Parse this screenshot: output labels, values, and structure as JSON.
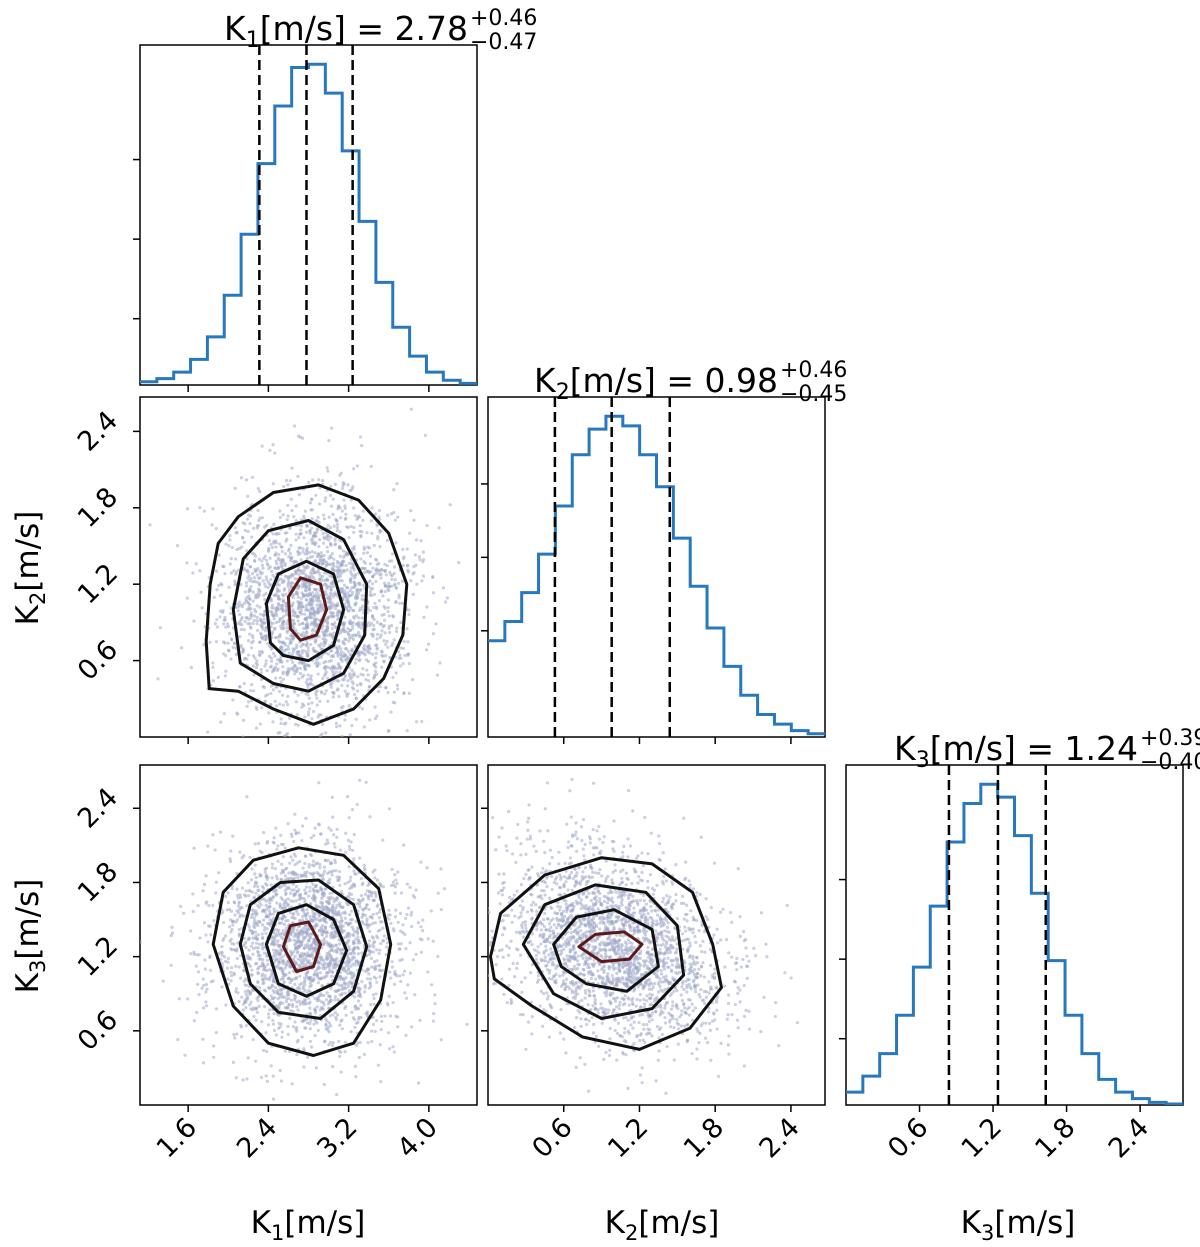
{
  "chart_data": {
    "type": "corner",
    "colors": {
      "hist": "#2878c0",
      "scatter": "#9fa7c8",
      "contour": "#111111",
      "contour_inner": "#5a1a1a"
    },
    "params": [
      {
        "name": "K1",
        "label_main": "K",
        "label_sub": "1",
        "label_unit": "[m/s]",
        "median": "2.78",
        "err_plus": "+0.46",
        "err_minus": "−0.47",
        "quantiles": [
          2.31,
          2.78,
          3.24
        ],
        "range": [
          1.12,
          4.48
        ],
        "ticks": [
          1.6,
          2.4,
          3.2,
          4.0
        ],
        "tick_labels": [
          "1.6",
          "2.4",
          "3.2",
          "4.0"
        ]
      },
      {
        "name": "K2",
        "label_main": "K",
        "label_sub": "2",
        "label_unit": "[m/s]",
        "median": "0.98",
        "err_plus": "+0.46",
        "err_minus": "−0.45",
        "quantiles": [
          0.53,
          0.98,
          1.44
        ],
        "range": [
          0.0,
          2.67
        ],
        "ticks": [
          0.6,
          1.2,
          1.8,
          2.4
        ],
        "tick_labels": [
          "0.6",
          "1.2",
          "1.8",
          "2.4"
        ]
      },
      {
        "name": "K3",
        "label_main": "K",
        "label_sub": "3",
        "label_unit": "[m/s]",
        "median": "1.24",
        "err_plus": "+0.39",
        "err_minus": "−0.40",
        "quantiles": [
          0.84,
          1.24,
          1.63
        ],
        "range": [
          0.0,
          2.75
        ],
        "ticks": [
          0.6,
          1.2,
          1.8,
          2.4
        ],
        "tick_labels": [
          "0.6",
          "1.2",
          "1.8",
          "2.4"
        ]
      }
    ],
    "histograms": [
      {
        "param": "K1",
        "bin_start": 1.12,
        "bin_width": 0.168,
        "counts": [
          0.01,
          0.02,
          0.04,
          0.08,
          0.15,
          0.28,
          0.47,
          0.69,
          0.87,
          0.99,
          1.0,
          0.91,
          0.73,
          0.51,
          0.32,
          0.18,
          0.09,
          0.04,
          0.015,
          0.005
        ]
      },
      {
        "param": "K2",
        "bin_start": 0.0,
        "bin_width": 0.1335,
        "counts": [
          0.3,
          0.36,
          0.45,
          0.57,
          0.72,
          0.88,
          0.96,
          1.0,
          0.97,
          0.88,
          0.78,
          0.62,
          0.47,
          0.34,
          0.22,
          0.13,
          0.07,
          0.04,
          0.02,
          0.01
        ]
      },
      {
        "param": "K3",
        "bin_start": 0.0,
        "bin_width": 0.1375,
        "counts": [
          0.04,
          0.09,
          0.16,
          0.28,
          0.43,
          0.62,
          0.82,
          0.94,
          1.0,
          0.96,
          0.84,
          0.66,
          0.45,
          0.28,
          0.16,
          0.08,
          0.04,
          0.02,
          0.008,
          0.003
        ]
      }
    ],
    "pairs": [
      {
        "x": "K1",
        "y": "K2",
        "center": [
          2.85,
          1.02
        ],
        "sigma": [
          0.47,
          0.45
        ],
        "rho": 0.0,
        "n_points": 2400,
        "seed": 11,
        "contours": [
          [
            [
              1.81,
              0.38
            ],
            [
              1.78,
              0.75
            ],
            [
              1.82,
              1.2
            ],
            [
              1.9,
              1.52
            ],
            [
              2.1,
              1.73
            ],
            [
              2.45,
              1.92
            ],
            [
              2.9,
              1.98
            ],
            [
              3.3,
              1.86
            ],
            [
              3.6,
              1.6
            ],
            [
              3.78,
              1.2
            ],
            [
              3.74,
              0.8
            ],
            [
              3.55,
              0.46
            ],
            [
              3.25,
              0.22
            ],
            [
              2.85,
              0.1
            ],
            [
              2.45,
              0.22
            ],
            [
              2.1,
              0.36
            ]
          ],
          [
            [
              2.12,
              0.58
            ],
            [
              2.05,
              1.0
            ],
            [
              2.15,
              1.4
            ],
            [
              2.4,
              1.62
            ],
            [
              2.8,
              1.7
            ],
            [
              3.15,
              1.55
            ],
            [
              3.38,
              1.2
            ],
            [
              3.36,
              0.8
            ],
            [
              3.15,
              0.5
            ],
            [
              2.8,
              0.36
            ],
            [
              2.45,
              0.42
            ]
          ],
          [
            [
              2.42,
              0.74
            ],
            [
              2.38,
              1.05
            ],
            [
              2.5,
              1.28
            ],
            [
              2.78,
              1.38
            ],
            [
              3.05,
              1.28
            ],
            [
              3.15,
              1.0
            ],
            [
              3.05,
              0.72
            ],
            [
              2.8,
              0.6
            ],
            [
              2.55,
              0.64
            ]
          ],
          [
            [
              2.62,
              0.85
            ],
            [
              2.6,
              1.1
            ],
            [
              2.72,
              1.25
            ],
            [
              2.92,
              1.2
            ],
            [
              2.98,
              1.0
            ],
            [
              2.88,
              0.8
            ],
            [
              2.72,
              0.76
            ]
          ]
        ]
      },
      {
        "x": "K1",
        "y": "K3",
        "center": [
          2.78,
          1.3
        ],
        "sigma": [
          0.47,
          0.4
        ],
        "rho": 0.0,
        "n_points": 2400,
        "seed": 23,
        "contours": [
          [
            [
              1.85,
              1.3
            ],
            [
              1.95,
              1.72
            ],
            [
              2.25,
              1.98
            ],
            [
              2.7,
              2.08
            ],
            [
              3.15,
              2.02
            ],
            [
              3.5,
              1.75
            ],
            [
              3.62,
              1.3
            ],
            [
              3.52,
              0.85
            ],
            [
              3.25,
              0.5
            ],
            [
              2.85,
              0.4
            ],
            [
              2.4,
              0.5
            ],
            [
              2.05,
              0.8
            ]
          ],
          [
            [
              2.12,
              1.3
            ],
            [
              2.22,
              1.62
            ],
            [
              2.52,
              1.8
            ],
            [
              2.9,
              1.82
            ],
            [
              3.25,
              1.62
            ],
            [
              3.38,
              1.28
            ],
            [
              3.25,
              0.92
            ],
            [
              2.92,
              0.7
            ],
            [
              2.5,
              0.75
            ],
            [
              2.22,
              0.98
            ]
          ],
          [
            [
              2.38,
              1.3
            ],
            [
              2.5,
              1.55
            ],
            [
              2.78,
              1.62
            ],
            [
              3.05,
              1.5
            ],
            [
              3.18,
              1.25
            ],
            [
              3.05,
              0.98
            ],
            [
              2.78,
              0.88
            ],
            [
              2.5,
              0.98
            ]
          ],
          [
            [
              2.55,
              1.28
            ],
            [
              2.62,
              1.45
            ],
            [
              2.8,
              1.48
            ],
            [
              2.92,
              1.3
            ],
            [
              2.85,
              1.12
            ],
            [
              2.68,
              1.08
            ]
          ]
        ]
      },
      {
        "x": "K2",
        "y": "K3",
        "center": [
          1.0,
          1.28
        ],
        "sigma": [
          0.45,
          0.4
        ],
        "rho": -0.3,
        "n_points": 2400,
        "seed": 37,
        "contours": [
          [
            [
              0.02,
              1.2
            ],
            [
              0.1,
              1.55
            ],
            [
              0.45,
              1.86
            ],
            [
              0.9,
              2.0
            ],
            [
              1.3,
              1.95
            ],
            [
              1.62,
              1.72
            ],
            [
              1.78,
              1.3
            ],
            [
              1.85,
              0.95
            ],
            [
              1.6,
              0.62
            ],
            [
              1.2,
              0.45
            ],
            [
              0.75,
              0.55
            ],
            [
              0.35,
              0.8
            ],
            [
              0.05,
              1.02
            ]
          ],
          [
            [
              0.28,
              1.3
            ],
            [
              0.45,
              1.62
            ],
            [
              0.85,
              1.78
            ],
            [
              1.25,
              1.72
            ],
            [
              1.5,
              1.45
            ],
            [
              1.55,
              1.05
            ],
            [
              1.3,
              0.78
            ],
            [
              0.9,
              0.7
            ],
            [
              0.52,
              0.9
            ]
          ],
          [
            [
              0.52,
              1.3
            ],
            [
              0.7,
              1.52
            ],
            [
              1.0,
              1.58
            ],
            [
              1.3,
              1.42
            ],
            [
              1.35,
              1.12
            ],
            [
              1.1,
              0.92
            ],
            [
              0.78,
              0.98
            ],
            [
              0.58,
              1.12
            ]
          ],
          [
            [
              0.72,
              1.28
            ],
            [
              0.85,
              1.38
            ],
            [
              1.08,
              1.4
            ],
            [
              1.22,
              1.3
            ],
            [
              1.12,
              1.18
            ],
            [
              0.9,
              1.16
            ]
          ]
        ]
      }
    ]
  }
}
